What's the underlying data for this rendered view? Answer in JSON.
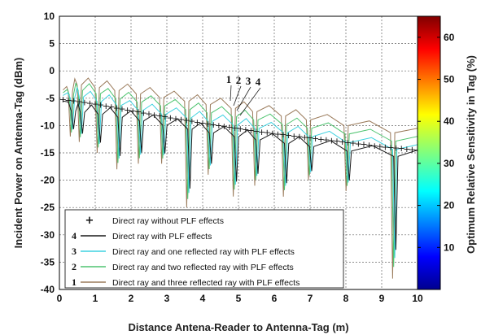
{
  "chart_data": {
    "type": "line",
    "title": "",
    "xlabel": "Distance Antena-Reader to Antenna-Tag (m)",
    "ylabel": "Incident Power on Antenna-Tag (dBm)",
    "xlim": [
      0,
      10
    ],
    "ylim": [
      -40,
      10
    ],
    "xticks": [
      0,
      1,
      2,
      3,
      4,
      5,
      6,
      7,
      8,
      9,
      10
    ],
    "yticks": [
      10,
      5,
      0,
      -5,
      -10,
      -15,
      -20,
      -25,
      -30,
      -35,
      -40
    ],
    "grid": true,
    "legend_position": "bottom-left",
    "x": [
      0.1,
      0.5,
      1,
      1.5,
      2,
      2.5,
      3,
      3.5,
      4,
      4.5,
      5,
      5.5,
      6,
      6.5,
      7,
      7.5,
      8,
      8.5,
      9,
      9.5,
      10
    ],
    "series": [
      {
        "key": "",
        "name": "Direct ray without PLF effects",
        "style": "markers",
        "color": "#111111",
        "values": [
          -5.2,
          -5.5,
          -6.0,
          -6.6,
          -7.2,
          -7.8,
          -8.4,
          -8.9,
          -9.5,
          -10.0,
          -10.5,
          -11.0,
          -11.4,
          -11.8,
          -12.2,
          -12.6,
          -13.0,
          -13.4,
          -13.8,
          -14.1,
          -14.4
        ]
      },
      {
        "key": "4",
        "name": "Direct ray with PLF effects",
        "style": "line",
        "color": "#1a1a1a",
        "values": [
          -5.5,
          -6.0,
          -6.3,
          -6.8,
          -7.3,
          -7.9,
          -8.5,
          -9.0,
          -9.6,
          -10.1,
          -10.6,
          -11.1,
          -11.5,
          -11.9,
          -12.3,
          -12.7,
          -13.1,
          -13.5,
          -13.9,
          -14.2,
          -14.5
        ]
      },
      {
        "key": "3",
        "name": "Direct ray and one reflected ray with PLF effects",
        "style": "line",
        "color": "#3fd2e0",
        "values": [
          -4.5,
          -3.0,
          -4.0,
          -4.5,
          -5.5,
          -6.0,
          -6.5,
          -7.0,
          -7.5,
          -8.0,
          -8.5,
          -9.0,
          -9.5,
          -10.0,
          -10.5,
          -11.0,
          -11.5,
          -12.0,
          -12.5,
          -13.0,
          -13.5
        ]
      },
      {
        "key": "2",
        "name": "Direct ray and two reflected ray with PLF effects",
        "style": "line",
        "color": "#4fc470",
        "values": [
          -4.0,
          -2.0,
          -2.5,
          -3.5,
          -4.0,
          -4.5,
          -5.0,
          -5.5,
          -6.0,
          -6.5,
          -7.0,
          -7.5,
          -8.0,
          -8.5,
          -9.0,
          -9.5,
          -10.0,
          -10.5,
          -11.0,
          -11.5,
          -12.0
        ]
      },
      {
        "key": "1",
        "name": "Direct ray and three reflected ray with PLF effects",
        "style": "line",
        "color": "#9a7a5a",
        "values": [
          -3.5,
          -1.0,
          -1.5,
          -2.0,
          -2.5,
          -3.0,
          -3.5,
          -4.0,
          -4.5,
          -5.0,
          -5.5,
          -6.0,
          -6.5,
          -7.0,
          -7.5,
          -8.0,
          -8.5,
          -9.0,
          -9.5,
          -10.0,
          -10.5
        ]
      }
    ],
    "nulls": [
      {
        "x": 0.35,
        "y": -12
      },
      {
        "x": 0.6,
        "y": -13
      },
      {
        "x": 1.1,
        "y": -15
      },
      {
        "x": 1.65,
        "y": -18
      },
      {
        "x": 2.25,
        "y": -17
      },
      {
        "x": 2.9,
        "y": -17
      },
      {
        "x": 3.6,
        "y": -25
      },
      {
        "x": 4.2,
        "y": -19
      },
      {
        "x": 4.9,
        "y": -23
      },
      {
        "x": 5.5,
        "y": -21
      },
      {
        "x": 6.3,
        "y": -23
      },
      {
        "x": 7.0,
        "y": -20
      },
      {
        "x": 8.05,
        "y": -22
      },
      {
        "x": 9.35,
        "y": -38
      }
    ],
    "annotations": [
      "1",
      "2",
      "3",
      "4"
    ],
    "colorbar": {
      "label": "Optimum Relative Sensitivity in Tag (%)",
      "ticks": [
        60,
        50,
        40,
        30,
        20,
        10
      ],
      "range": [
        0,
        65
      ]
    }
  }
}
